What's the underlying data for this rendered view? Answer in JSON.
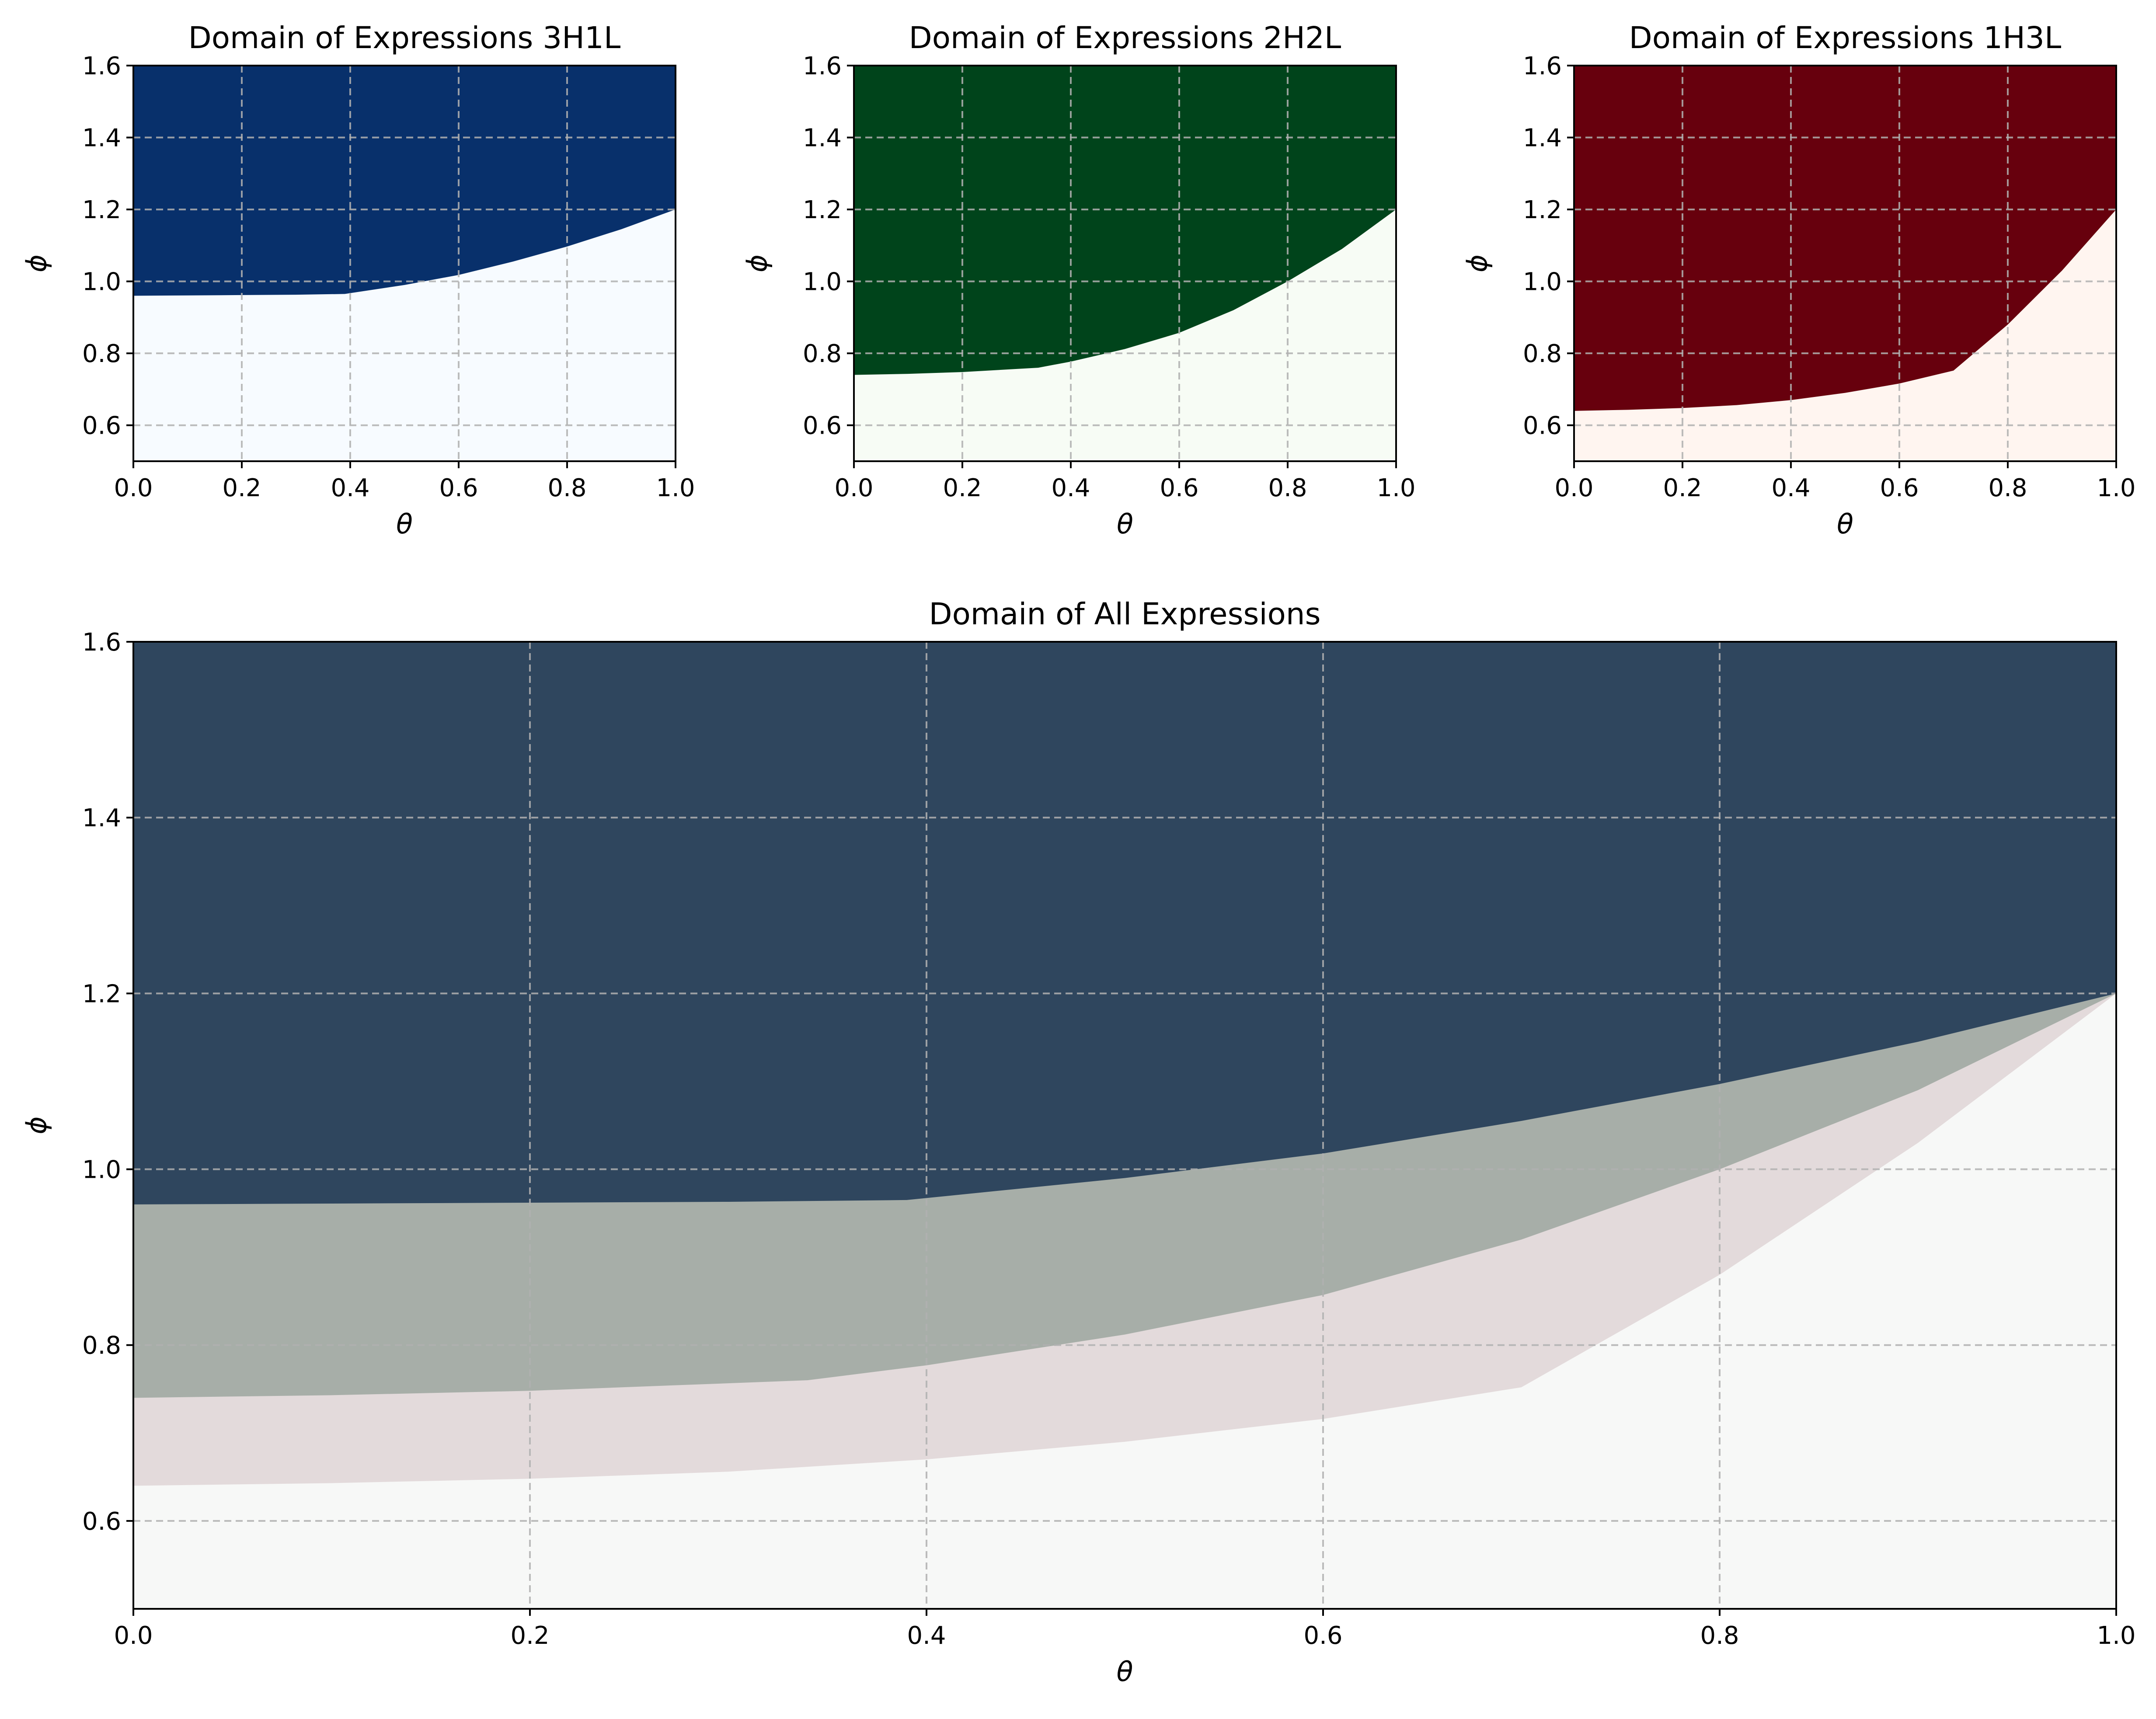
{
  "chart_data": [
    {
      "type": "area",
      "title": "Domain of Expressions 3H1L",
      "xlabel": "θ",
      "ylabel": "ϕ",
      "xlim": [
        0.0,
        1.0
      ],
      "ylim": [
        0.5,
        1.6
      ],
      "xticks": [
        "0.0",
        "0.2",
        "0.4",
        "0.6",
        "0.8",
        "1.0"
      ],
      "yticks": [
        "0.6",
        "0.8",
        "1.0",
        "1.2",
        "1.4",
        "1.6"
      ],
      "grid": true,
      "fill_color": "#08306b",
      "background_color": "#f7fbff",
      "boundary": {
        "x": [
          0.0,
          0.1,
          0.2,
          0.3,
          0.39,
          0.5,
          0.6,
          0.7,
          0.8,
          0.9,
          1.0
        ],
        "y": [
          0.96,
          0.961,
          0.962,
          0.963,
          0.965,
          0.99,
          1.018,
          1.055,
          1.097,
          1.145,
          1.2
        ]
      }
    },
    {
      "type": "area",
      "title": "Domain of Expressions 2H2L",
      "xlabel": "θ",
      "ylabel": "ϕ",
      "xlim": [
        0.0,
        1.0
      ],
      "ylim": [
        0.5,
        1.6
      ],
      "xticks": [
        "0.0",
        "0.2",
        "0.4",
        "0.6",
        "0.8",
        "1.0"
      ],
      "yticks": [
        "0.6",
        "0.8",
        "1.0",
        "1.2",
        "1.4",
        "1.6"
      ],
      "grid": true,
      "fill_color": "#00441b",
      "background_color": "#f7fcf5",
      "boundary": {
        "x": [
          0.0,
          0.1,
          0.2,
          0.34,
          0.4,
          0.5,
          0.6,
          0.7,
          0.8,
          0.9,
          1.0
        ],
        "y": [
          0.74,
          0.743,
          0.748,
          0.76,
          0.777,
          0.812,
          0.857,
          0.92,
          1.0,
          1.09,
          1.2
        ]
      }
    },
    {
      "type": "area",
      "title": "Domain of Expressions 1H3L",
      "xlabel": "θ",
      "ylabel": "ϕ",
      "xlim": [
        0.0,
        1.0
      ],
      "ylim": [
        0.5,
        1.6
      ],
      "xticks": [
        "0.0",
        "0.2",
        "0.4",
        "0.6",
        "0.8",
        "1.0"
      ],
      "yticks": [
        "0.6",
        "0.8",
        "1.0",
        "1.2",
        "1.4",
        "1.6"
      ],
      "grid": true,
      "fill_color": "#67000d",
      "background_color": "#fff5f0",
      "boundary": {
        "x": [
          0.0,
          0.1,
          0.2,
          0.3,
          0.4,
          0.5,
          0.6,
          0.7,
          0.8,
          0.9,
          1.0
        ],
        "y": [
          0.64,
          0.643,
          0.648,
          0.656,
          0.67,
          0.69,
          0.716,
          0.752,
          0.88,
          1.03,
          1.2
        ]
      }
    },
    {
      "type": "area",
      "title": "Domain of All Expressions",
      "xlabel": "θ",
      "ylabel": "ϕ",
      "xlim": [
        0.0,
        1.0
      ],
      "ylim": [
        0.5,
        1.6
      ],
      "xticks": [
        "0.0",
        "0.2",
        "0.4",
        "0.6",
        "0.8",
        "1.0"
      ],
      "yticks": [
        "0.6",
        "0.8",
        "1.0",
        "1.2",
        "1.4",
        "1.6"
      ],
      "grid": true,
      "background_color": "#f7f8f7",
      "layers": [
        {
          "fill_color": "#e3dadb",
          "source": "1H3L"
        },
        {
          "fill_color": "#a7aea8",
          "source": "2H2L"
        },
        {
          "fill_color": "#2f465e",
          "source": "3H1L"
        }
      ]
    }
  ]
}
